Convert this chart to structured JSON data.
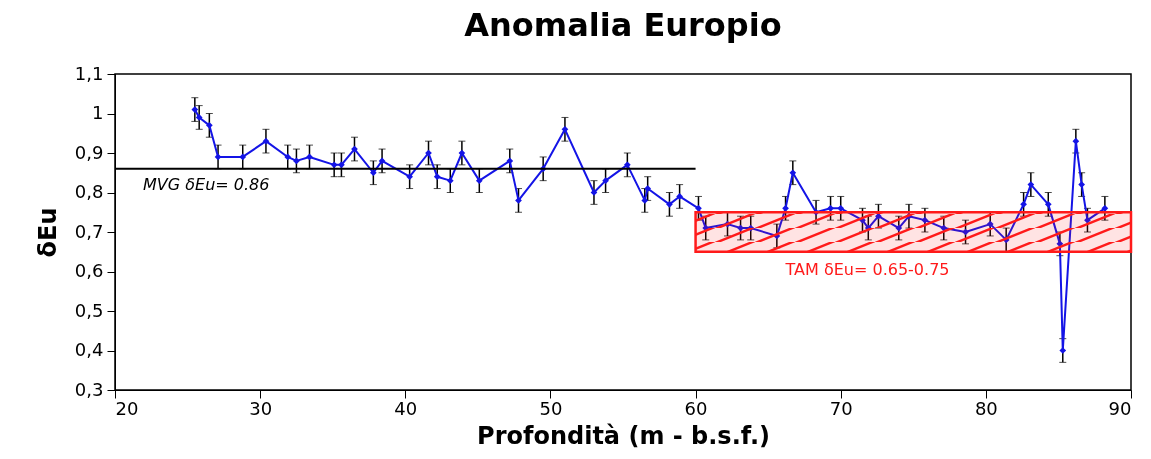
{
  "chart_data": {
    "type": "line",
    "title": "Anomalia Europio",
    "xlabel": "Profondità (m - b.s.f.)",
    "ylabel": "δEu",
    "xlim": [
      20,
      90
    ],
    "xticks": [
      20,
      30,
      40,
      50,
      60,
      70,
      80,
      90
    ],
    "ylim": [
      0.3,
      1.1
    ],
    "yticks": [
      {
        "value": 0.3,
        "label": "0,3"
      },
      {
        "value": 0.4,
        "label": "0,4"
      },
      {
        "value": 0.5,
        "label": "0,5"
      },
      {
        "value": 0.6,
        "label": "0,6"
      },
      {
        "value": 0.7,
        "label": "0,7"
      },
      {
        "value": 0.8,
        "label": "0,8"
      },
      {
        "value": 0.9,
        "label": "0,9"
      },
      {
        "value": 1,
        "label": "1"
      },
      {
        "value": 1.1,
        "label": "1,1"
      }
    ],
    "grid": false,
    "marker": "diamond",
    "line_style": "solid",
    "series": [
      {
        "color": "#1414e6",
        "x": [
          25.5,
          25.8,
          26.5,
          27.1,
          28.8,
          30.4,
          31.9,
          32.5,
          33.4,
          35.1,
          35.6,
          36.5,
          37.8,
          38.4,
          40.3,
          41.6,
          42.2,
          43.1,
          43.9,
          45.1,
          47.2,
          47.8,
          49.5,
          51.0,
          53.0,
          53.8,
          55.3,
          56.5,
          56.7,
          58.2,
          58.9,
          60.2,
          60.7,
          62.2,
          63.1,
          63.8,
          65.6,
          66.2,
          66.7,
          68.3,
          69.3,
          70.0,
          71.5,
          71.9,
          72.6,
          74.0,
          74.7,
          75.8,
          77.1,
          78.6,
          80.3,
          81.4,
          82.6,
          83.1,
          84.3,
          85.1,
          85.3,
          86.2,
          86.6,
          87.0,
          88.2
        ],
        "values": [
          1.01,
          0.99,
          0.97,
          0.89,
          0.89,
          0.93,
          0.89,
          0.88,
          0.89,
          0.87,
          0.87,
          0.91,
          0.85,
          0.88,
          0.84,
          0.9,
          0.84,
          0.83,
          0.9,
          0.83,
          0.88,
          0.78,
          0.86,
          0.96,
          0.8,
          0.83,
          0.87,
          0.78,
          0.81,
          0.77,
          0.79,
          0.76,
          0.71,
          0.72,
          0.71,
          0.71,
          0.69,
          0.76,
          0.85,
          0.75,
          0.76,
          0.76,
          0.73,
          0.71,
          0.74,
          0.71,
          0.74,
          0.73,
          0.71,
          0.7,
          0.72,
          0.68,
          0.77,
          0.82,
          0.77,
          0.67,
          0.4,
          0.93,
          0.82,
          0.73,
          0.76
        ],
        "errors": [
          0.03,
          0.03,
          0.03,
          0.03,
          0.03,
          0.03,
          0.03,
          0.03,
          0.03,
          0.03,
          0.03,
          0.03,
          0.03,
          0.03,
          0.03,
          0.03,
          0.03,
          0.03,
          0.03,
          0.03,
          0.03,
          0.03,
          0.03,
          0.03,
          0.03,
          0.03,
          0.03,
          0.03,
          0.03,
          0.03,
          0.03,
          0.03,
          0.03,
          0.03,
          0.03,
          0.03,
          0.03,
          0.03,
          0.03,
          0.03,
          0.03,
          0.03,
          0.03,
          0.03,
          0.03,
          0.03,
          0.03,
          0.03,
          0.03,
          0.03,
          0.03,
          0.03,
          0.03,
          0.03,
          0.03,
          0.03,
          0.03,
          0.03,
          0.03,
          0.03,
          0.03
        ]
      },
      {
        "type": "line",
        "name": "MVG δEu= 0.86",
        "color": "#000000",
        "marker": "none",
        "x": [
          20,
          60
        ],
        "values": [
          0.86,
          0.86
        ]
      },
      {
        "type": "line",
        "name": "TAM δEu= 0.65-0.75",
        "color": "#ff1a1a",
        "marker": "none",
        "x": [
          60,
          90
        ],
        "values": [
          null,
          null
        ],
        "lower": [
          0.65,
          0.65
        ],
        "upper": [
          0.75,
          0.75
        ]
      }
    ]
  }
}
